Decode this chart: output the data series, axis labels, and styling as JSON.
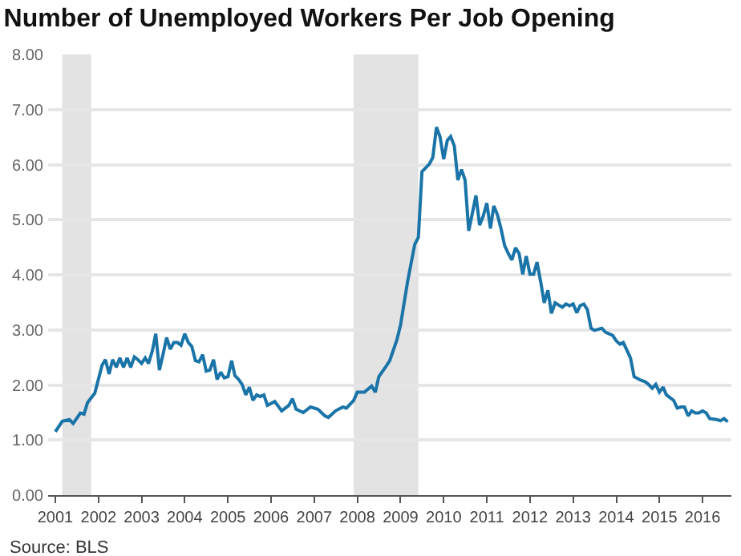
{
  "chart_data": {
    "type": "line",
    "title": "Number of Unemployed Workers Per Job Opening",
    "annotations": [
      "Source: BLS"
    ],
    "x": [
      "2001-01",
      "2001-03",
      "2001-05",
      "2001-06",
      "2001-08",
      "2001-09",
      "2001-10",
      "2001-12",
      "2002-02",
      "2002-03",
      "2002-04",
      "2002-05",
      "2002-06",
      "2002-07",
      "2002-08",
      "2002-09",
      "2002-10",
      "2002-11",
      "2002-12",
      "2003-01",
      "2003-02",
      "2003-03",
      "2003-04",
      "2003-05",
      "2003-06",
      "2003-07",
      "2003-08",
      "2003-09",
      "2003-10",
      "2003-11",
      "2003-12",
      "2004-01",
      "2004-02",
      "2004-03",
      "2004-04",
      "2004-05",
      "2004-06",
      "2004-07",
      "2004-08",
      "2004-09",
      "2004-10",
      "2004-11",
      "2004-12",
      "2005-01",
      "2005-02",
      "2005-03",
      "2005-04",
      "2005-05",
      "2005-06",
      "2005-07",
      "2005-08",
      "2005-09",
      "2005-10",
      "2005-11",
      "2005-12",
      "2006-02",
      "2006-04",
      "2006-06",
      "2006-07",
      "2006-08",
      "2006-10",
      "2006-12",
      "2007-02",
      "2007-04",
      "2007-05",
      "2007-07",
      "2007-09",
      "2007-10",
      "2007-12",
      "2008-01",
      "2008-03",
      "2008-05",
      "2008-06",
      "2008-07",
      "2008-09",
      "2008-10",
      "2008-12",
      "2009-01",
      "2009-03",
      "2009-05",
      "2009-06",
      "2009-07",
      "2009-09",
      "2009-10",
      "2009-11",
      "2009-12",
      "2010-01",
      "2010-02",
      "2010-03",
      "2010-04",
      "2010-05",
      "2010-06",
      "2010-07",
      "2010-08",
      "2010-09",
      "2010-10",
      "2010-11",
      "2010-12",
      "2011-01",
      "2011-02",
      "2011-03",
      "2011-04",
      "2011-05",
      "2011-06",
      "2011-07",
      "2011-08",
      "2011-09",
      "2011-10",
      "2011-11",
      "2011-12",
      "2012-01",
      "2012-02",
      "2012-03",
      "2012-04",
      "2012-05",
      "2012-06",
      "2012-07",
      "2012-08",
      "2012-10",
      "2012-11",
      "2012-12",
      "2013-01",
      "2013-02",
      "2013-03",
      "2013-04",
      "2013-05",
      "2013-06",
      "2013-07",
      "2013-09",
      "2013-10",
      "2013-12",
      "2014-01",
      "2014-02",
      "2014-03",
      "2014-04",
      "2014-05",
      "2014-06",
      "2014-08",
      "2014-09",
      "2014-10",
      "2014-11",
      "2014-12",
      "2015-01",
      "2015-02",
      "2015-03",
      "2015-05",
      "2015-06",
      "2015-07",
      "2015-08",
      "2015-09",
      "2015-10",
      "2015-11",
      "2015-12",
      "2016-01",
      "2016-02",
      "2016-03",
      "2016-05",
      "2016-06",
      "2016-07",
      "2016-08"
    ],
    "series": [
      {
        "color": "#1a74a8",
        "values": [
          1.15,
          1.34,
          1.37,
          1.3,
          1.49,
          1.47,
          1.68,
          1.85,
          2.36,
          2.46,
          2.2,
          2.46,
          2.32,
          2.49,
          2.32,
          2.49,
          2.32,
          2.51,
          2.46,
          2.39,
          2.49,
          2.39,
          2.61,
          2.93,
          2.27,
          2.55,
          2.86,
          2.65,
          2.77,
          2.77,
          2.72,
          2.93,
          2.77,
          2.7,
          2.44,
          2.42,
          2.55,
          2.25,
          2.27,
          2.46,
          2.1,
          2.23,
          2.13,
          2.15,
          2.44,
          2.17,
          2.1,
          2.01,
          1.82,
          1.96,
          1.72,
          1.82,
          1.79,
          1.82,
          1.63,
          1.7,
          1.53,
          1.63,
          1.75,
          1.56,
          1.5,
          1.6,
          1.56,
          1.44,
          1.41,
          1.53,
          1.6,
          1.58,
          1.72,
          1.87,
          1.87,
          1.98,
          1.87,
          2.15,
          2.34,
          2.44,
          2.82,
          3.09,
          3.87,
          4.55,
          4.68,
          5.87,
          6.01,
          6.13,
          6.68,
          6.51,
          6.1,
          6.44,
          6.51,
          6.34,
          5.72,
          5.91,
          5.72,
          4.8,
          5.12,
          5.44,
          4.9,
          5.06,
          5.3,
          4.84,
          5.25,
          5.09,
          4.84,
          4.53,
          4.39,
          4.27,
          4.49,
          4.39,
          4.01,
          4.34,
          4.01,
          4.01,
          4.23,
          3.87,
          3.49,
          3.72,
          3.3,
          3.49,
          3.41,
          3.47,
          3.44,
          3.47,
          3.31,
          3.44,
          3.47,
          3.37,
          3.03,
          2.99,
          3.03,
          2.96,
          2.9,
          2.8,
          2.74,
          2.77,
          2.63,
          2.49,
          2.15,
          2.08,
          2.06,
          2.01,
          1.94,
          2.01,
          1.87,
          1.96,
          1.82,
          1.72,
          1.58,
          1.6,
          1.6,
          1.44,
          1.53,
          1.49,
          1.49,
          1.53,
          1.49,
          1.39,
          1.37,
          1.35,
          1.39,
          1.33
        ]
      }
    ],
    "bands": [
      {
        "axis": "x",
        "from": "2001-03",
        "to": "2001-11",
        "color": "#e3e3e3"
      },
      {
        "axis": "x",
        "from": "2007-12",
        "to": "2009-06",
        "color": "#e3e3e3"
      }
    ],
    "xlim": [
      "2000-11",
      "2016-09"
    ],
    "xticks": [
      "2001",
      "2002",
      "2003",
      "2004",
      "2005",
      "2006",
      "2007",
      "2008",
      "2009",
      "2010",
      "2011",
      "2012",
      "2013",
      "2014",
      "2015",
      "2016"
    ],
    "ylim": [
      0,
      8
    ],
    "yticks": [
      {
        "value": 0,
        "label": "0.00"
      },
      {
        "value": 1,
        "label": "1.00"
      },
      {
        "value": 2,
        "label": "2.00"
      },
      {
        "value": 3,
        "label": "3.00"
      },
      {
        "value": 4,
        "label": "4.00"
      },
      {
        "value": 5,
        "label": "5.00"
      },
      {
        "value": 6,
        "label": "6.00"
      },
      {
        "value": 7,
        "label": "7.00"
      },
      {
        "value": 8,
        "label": "8.00"
      }
    ],
    "grid": "y",
    "line_style": "solid"
  }
}
